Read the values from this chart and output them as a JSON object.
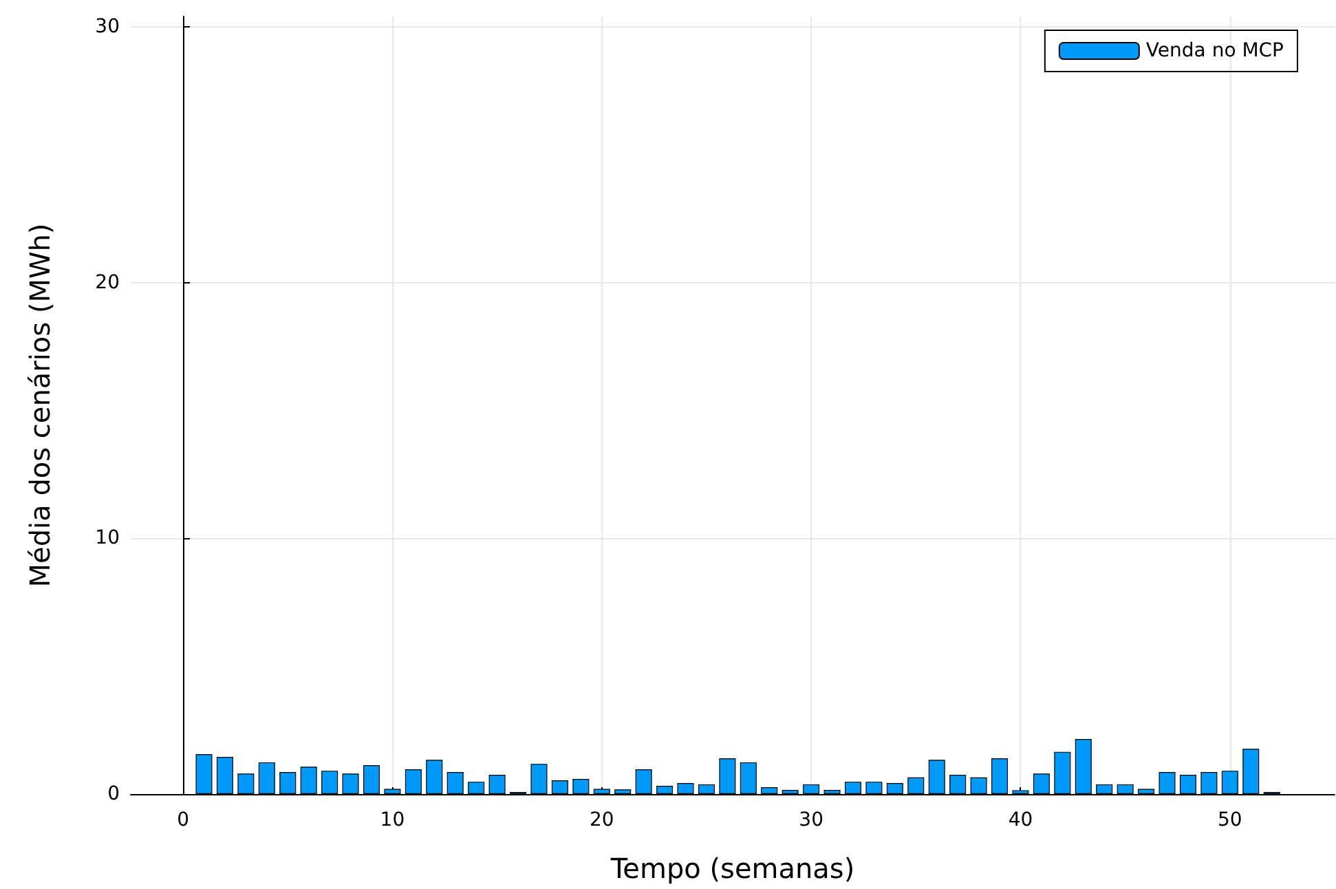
{
  "chart_data": {
    "type": "bar",
    "xlabel": "Tempo (semanas)",
    "ylabel": "Média dos cenários (MWh)",
    "x": [
      1,
      2,
      3,
      4,
      5,
      6,
      7,
      8,
      9,
      10,
      11,
      12,
      13,
      14,
      15,
      16,
      17,
      18,
      19,
      20,
      21,
      22,
      23,
      24,
      25,
      26,
      27,
      28,
      29,
      30,
      31,
      32,
      33,
      34,
      35,
      36,
      37,
      38,
      39,
      40,
      41,
      42,
      43,
      44,
      45,
      46,
      47,
      48,
      49,
      50,
      51,
      52
    ],
    "series": [
      {
        "name": "Venda no MCP",
        "color": "#009af9",
        "values": [
          1.56,
          1.45,
          0.8,
          1.24,
          0.86,
          1.07,
          0.91,
          0.8,
          1.13,
          0.2,
          0.97,
          1.34,
          0.86,
          0.48,
          0.75,
          0.08,
          1.18,
          0.54,
          0.59,
          0.2,
          0.18,
          0.97,
          0.32,
          0.43,
          0.38,
          1.4,
          1.24,
          0.27,
          0.16,
          0.38,
          0.16,
          0.48,
          0.48,
          0.43,
          0.65,
          1.34,
          0.75,
          0.65,
          1.4,
          0.15,
          0.8,
          1.65,
          2.15,
          0.38,
          0.38,
          0.2,
          0.86,
          0.75,
          0.86,
          0.91,
          1.77,
          0.08
        ]
      }
    ],
    "xlim": [
      -2.5,
      55
    ],
    "xticks": [
      0,
      10,
      20,
      30,
      40,
      50
    ],
    "ylim": [
      0,
      30.4
    ],
    "yticks": [
      0,
      10,
      20,
      30
    ],
    "grid": true,
    "legend": "top right"
  }
}
